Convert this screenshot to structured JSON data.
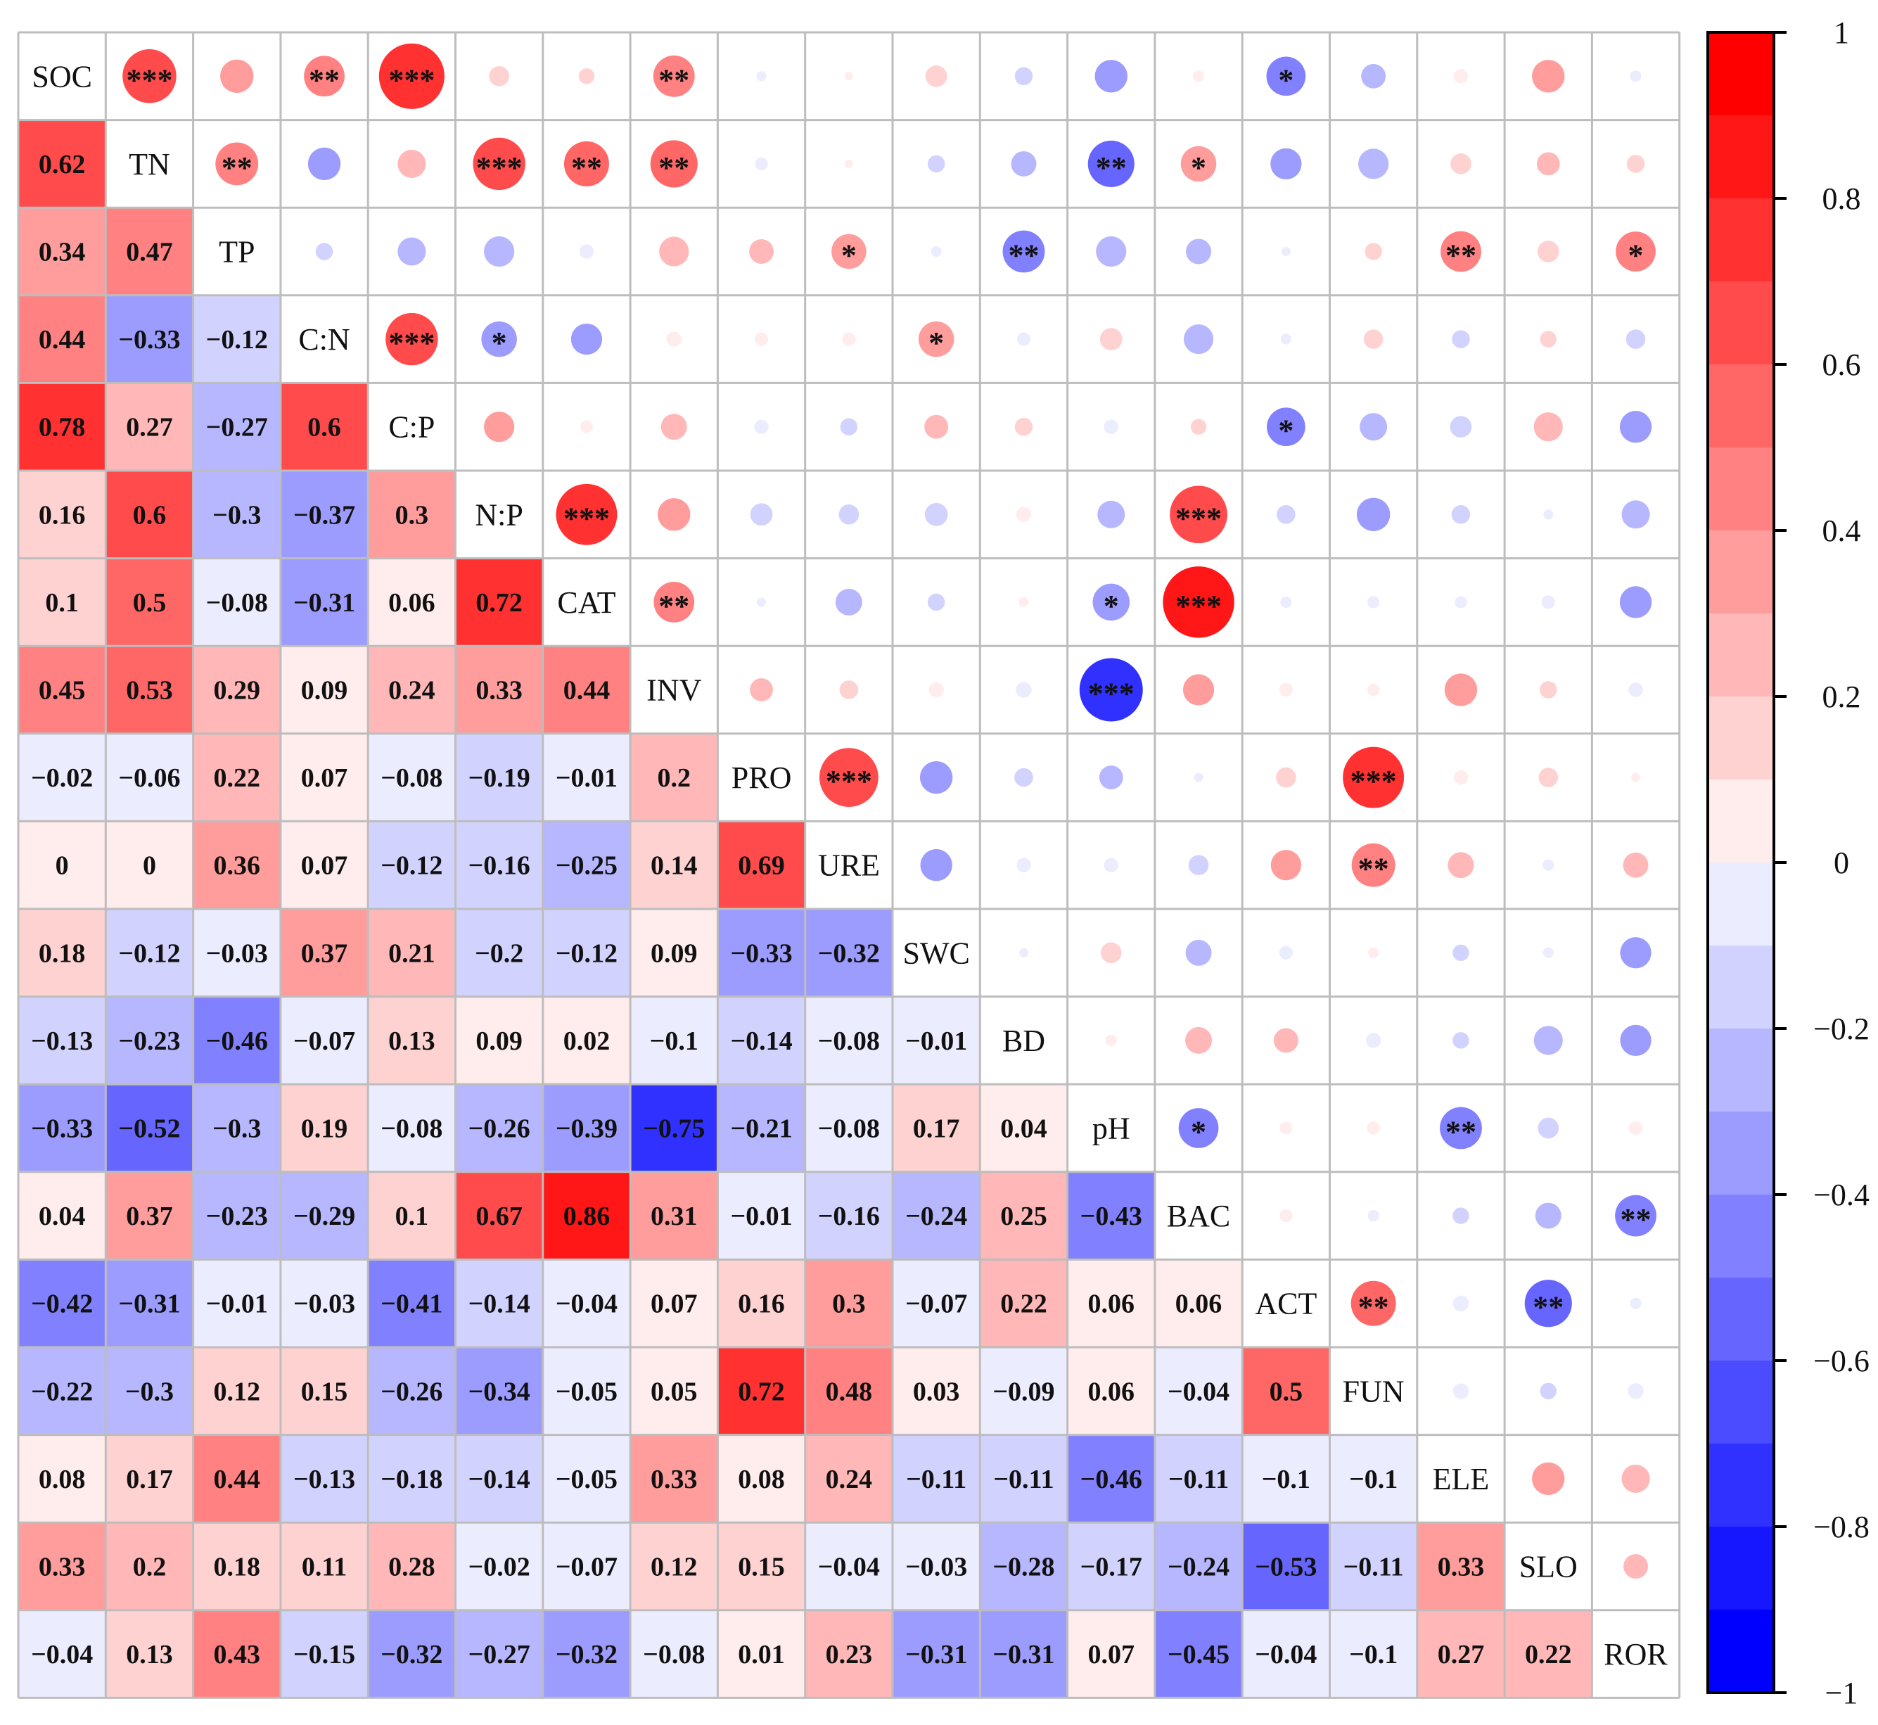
{
  "chart_data": {
    "type": "heatmap",
    "title": "",
    "variables": [
      "SOC",
      "TN",
      "TP",
      "C:N",
      "C:P",
      "N:P",
      "CAT",
      "INV",
      "PRO",
      "URE",
      "SWC",
      "BD",
      "pH",
      "BAC",
      "ACT",
      "FUN",
      "ELE",
      "SLO",
      "ROR"
    ],
    "lower_triangle_values": [
      [],
      [
        0.62
      ],
      [
        0.34,
        0.47
      ],
      [
        0.44,
        -0.33,
        -0.12
      ],
      [
        0.78,
        0.27,
        -0.27,
        0.6
      ],
      [
        0.16,
        0.6,
        -0.3,
        -0.37,
        0.3
      ],
      [
        0.1,
        0.5,
        -0.08,
        -0.31,
        0.06,
        0.72
      ],
      [
        0.45,
        0.53,
        0.29,
        0.09,
        0.24,
        0.33,
        0.44
      ],
      [
        -0.02,
        -0.06,
        0.22,
        0.07,
        -0.08,
        -0.19,
        -0.01,
        0.2
      ],
      [
        0,
        0,
        0.36,
        0.07,
        -0.12,
        -0.16,
        -0.25,
        0.14,
        0.69
      ],
      [
        0.18,
        -0.12,
        -0.03,
        0.37,
        0.21,
        -0.2,
        -0.12,
        0.09,
        -0.33,
        -0.32
      ],
      [
        -0.13,
        -0.23,
        -0.46,
        -0.07,
        0.13,
        0.09,
        0.02,
        -0.1,
        -0.14,
        -0.08,
        -0.01
      ],
      [
        -0.33,
        -0.52,
        -0.3,
        0.19,
        -0.08,
        -0.26,
        -0.39,
        -0.75,
        -0.21,
        -0.08,
        0.17,
        0.04
      ],
      [
        0.04,
        0.37,
        -0.23,
        -0.29,
        0.1,
        0.67,
        0.86,
        0.31,
        -0.01,
        -0.16,
        -0.24,
        0.25,
        -0.43
      ],
      [
        -0.42,
        -0.31,
        -0.01,
        -0.03,
        -0.41,
        -0.14,
        -0.04,
        0.07,
        0.16,
        0.3,
        -0.07,
        0.22,
        0.06,
        0.06
      ],
      [
        -0.22,
        -0.3,
        0.12,
        0.15,
        -0.26,
        -0.34,
        -0.05,
        0.05,
        0.72,
        0.48,
        0.03,
        -0.09,
        0.06,
        -0.04,
        0.5
      ],
      [
        0.08,
        0.17,
        0.44,
        -0.13,
        -0.18,
        -0.14,
        -0.05,
        0.33,
        0.08,
        0.24,
        -0.11,
        -0.11,
        -0.46,
        -0.11,
        -0.1,
        -0.1
      ],
      [
        0.33,
        0.2,
        0.18,
        0.11,
        0.28,
        -0.02,
        -0.07,
        0.12,
        0.15,
        -0.04,
        -0.03,
        -0.28,
        -0.17,
        -0.24,
        -0.53,
        -0.11,
        0.33
      ],
      [
        -0.04,
        0.13,
        0.43,
        -0.15,
        -0.32,
        -0.27,
        -0.32,
        -0.08,
        0.01,
        0.23,
        -0.31,
        -0.31,
        0.07,
        -0.45,
        -0.04,
        -0.1,
        0.27,
        0.22
      ]
    ],
    "significance": [
      {
        "row": "TN",
        "col": "SOC",
        "stars": "***"
      },
      {
        "row": "C:N",
        "col": "SOC",
        "stars": "**"
      },
      {
        "row": "C:P",
        "col": "SOC",
        "stars": "***"
      },
      {
        "row": "INV",
        "col": "SOC",
        "stars": "**"
      },
      {
        "row": "ACT",
        "col": "SOC",
        "stars": "*"
      },
      {
        "row": "TP",
        "col": "TN",
        "stars": "**"
      },
      {
        "row": "N:P",
        "col": "TN",
        "stars": "***"
      },
      {
        "row": "CAT",
        "col": "TN",
        "stars": "**"
      },
      {
        "row": "INV",
        "col": "TN",
        "stars": "**"
      },
      {
        "row": "pH",
        "col": "TN",
        "stars": "**"
      },
      {
        "row": "BAC",
        "col": "TN",
        "stars": "*"
      },
      {
        "row": "URE",
        "col": "TP",
        "stars": "*"
      },
      {
        "row": "BD",
        "col": "TP",
        "stars": "**"
      },
      {
        "row": "ELE",
        "col": "TP",
        "stars": "**"
      },
      {
        "row": "ROR",
        "col": "TP",
        "stars": "*"
      },
      {
        "row": "C:P",
        "col": "C:N",
        "stars": "***"
      },
      {
        "row": "N:P",
        "col": "C:N",
        "stars": "*"
      },
      {
        "row": "SWC",
        "col": "C:N",
        "stars": "*"
      },
      {
        "row": "ACT",
        "col": "C:P",
        "stars": "*"
      },
      {
        "row": "CAT",
        "col": "N:P",
        "stars": "***"
      },
      {
        "row": "BAC",
        "col": "N:P",
        "stars": "***"
      },
      {
        "row": "INV",
        "col": "CAT",
        "stars": "**"
      },
      {
        "row": "pH",
        "col": "CAT",
        "stars": "*"
      },
      {
        "row": "BAC",
        "col": "CAT",
        "stars": "***"
      },
      {
        "row": "pH",
        "col": "INV",
        "stars": "***"
      },
      {
        "row": "URE",
        "col": "PRO",
        "stars": "***"
      },
      {
        "row": "FUN",
        "col": "PRO",
        "stars": "***"
      },
      {
        "row": "FUN",
        "col": "URE",
        "stars": "**"
      },
      {
        "row": "BAC",
        "col": "pH",
        "stars": "*"
      },
      {
        "row": "ELE",
        "col": "pH",
        "stars": "**"
      },
      {
        "row": "ROR",
        "col": "BAC",
        "stars": "**"
      },
      {
        "row": "FUN",
        "col": "ACT",
        "stars": "**"
      },
      {
        "row": "SLO",
        "col": "ACT",
        "stars": "**"
      }
    ],
    "colorbar": {
      "range": [
        -1,
        1
      ],
      "tick_labels": [
        "1",
        "0.8",
        "0.6",
        "0.4",
        "0.2",
        "0",
        "−0.2",
        "−0.4",
        "−0.6",
        "−0.8",
        "−1"
      ],
      "bins": 20
    },
    "colors": {
      "positive_max": "#ff0000",
      "negative_max": "#0000ff",
      "neutral": "#ffffff",
      "grid": "#bdbdbd"
    }
  }
}
